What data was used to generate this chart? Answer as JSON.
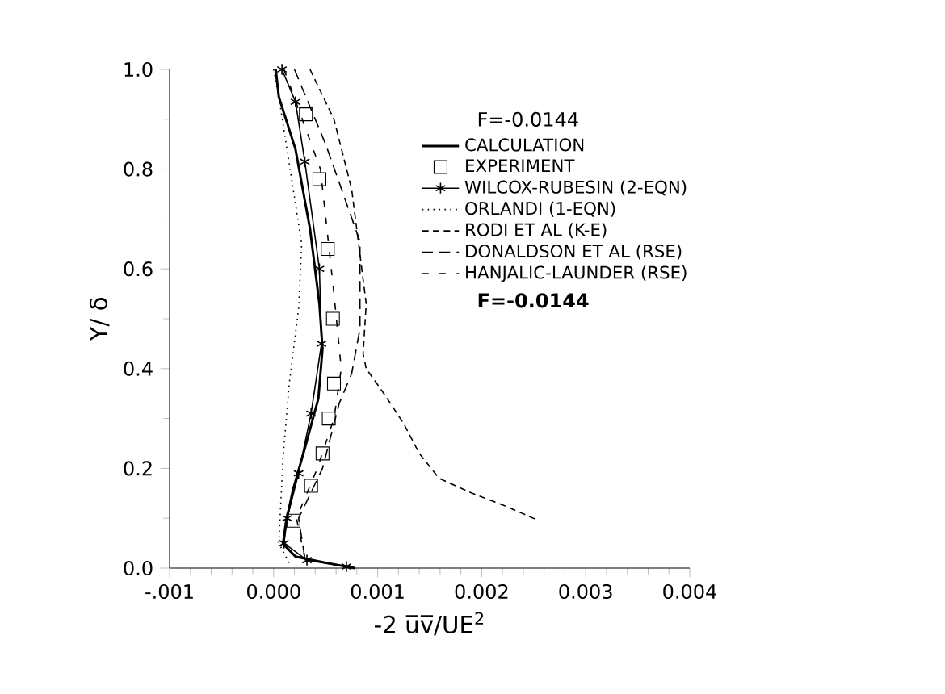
{
  "chart_data": {
    "type": "line",
    "xlabel": "-2 u̅v̅/UE$^{2}$",
    "ylabel": "Y/ δ",
    "xlim": [
      -0.001,
      0.004
    ],
    "ylim": [
      0,
      1.0
    ],
    "xticks": [
      {
        "value": -0.001,
        "label": "-.001"
      },
      {
        "value": 0,
        "label": "0.000"
      },
      {
        "value": 0.001,
        "label": "0.001"
      },
      {
        "value": 0.002,
        "label": "0.002"
      },
      {
        "value": 0.003,
        "label": "0.003"
      },
      {
        "value": 0.004,
        "label": "0.004"
      }
    ],
    "yticks": [
      {
        "value": 0,
        "label": "0.0"
      },
      {
        "value": 0.2,
        "label": "0.2"
      },
      {
        "value": 0.4,
        "label": "0.4"
      },
      {
        "value": 0.6,
        "label": "0.6"
      },
      {
        "value": 0.8,
        "label": "0.8"
      },
      {
        "value": 1.0,
        "label": "1.0"
      }
    ],
    "grid": false,
    "legend": "top right",
    "annotations": [
      "F=-0.0144",
      "F=-0.0144"
    ],
    "series": [
      {
        "name": "CALCULATION",
        "type": "line",
        "color": "#000000",
        "line_style": "solid",
        "marker": "none",
        "x": [
          2e-05,
          5e-05,
          0.00021,
          0.00035,
          0.00044,
          0.00047,
          0.00043,
          0.0003,
          0.00019,
          0.00012,
          9e-05,
          0.00021,
          0.00052,
          0.00078
        ],
        "values": [
          1.0,
          0.945,
          0.84,
          0.68,
          0.53,
          0.44,
          0.34,
          0.24,
          0.16,
          0.094,
          0.049,
          0.023,
          0.01,
          0.0
        ]
      },
      {
        "name": "EXPERIMENT",
        "type": "scatter",
        "color": "#000000",
        "marker": "square",
        "x": [
          0.00031,
          0.00044,
          0.00052,
          0.00057,
          0.00058,
          0.00053,
          0.00047,
          0.00036,
          0.00019
        ],
        "values": [
          0.91,
          0.78,
          0.64,
          0.5,
          0.37,
          0.3,
          0.23,
          0.165,
          0.095
        ]
      },
      {
        "name": "WILCOX-RUBESIN (2-EQN)",
        "type": "line",
        "color": "#000000",
        "line_style": "solid",
        "marker": "cross",
        "x": [
          8e-05,
          0.00021,
          0.0003,
          0.00044,
          0.00046,
          0.00036,
          0.00024,
          0.00013,
          0.0001,
          0.00032,
          0.0007
        ],
        "values": [
          1.0,
          0.935,
          0.815,
          0.6,
          0.45,
          0.31,
          0.19,
          0.1,
          0.05,
          0.016,
          0.003
        ]
      },
      {
        "name": "ORLANDI (1-EQN)",
        "type": "line",
        "color": "#000000",
        "line_style": "dotted",
        "marker": "none",
        "x": [
          0.0,
          5e-05,
          0.00027,
          0.00024,
          0.00015,
          9e-05,
          5e-05,
          0.00016
        ],
        "values": [
          1.0,
          0.945,
          0.65,
          0.52,
          0.37,
          0.22,
          0.05,
          0.006
        ]
      },
      {
        "name": "RODI  ET AL (K-E)",
        "type": "line",
        "color": "#000000",
        "line_style": "dashed",
        "marker": "none",
        "x": [
          0.00035,
          0.00058,
          0.00075,
          0.00089,
          0.00086,
          0.00089,
          0.00106,
          0.00125,
          0.0014,
          0.00159,
          0.00191,
          0.00221,
          0.00253
        ],
        "values": [
          1.0,
          0.9,
          0.76,
          0.53,
          0.43,
          0.4,
          0.35,
          0.29,
          0.23,
          0.18,
          0.15,
          0.126,
          0.097
        ]
      },
      {
        "name": "DONALDSON  ET AL (RSE)",
        "type": "line",
        "color": "#000000",
        "line_style": "dashed",
        "marker": "none",
        "x": [
          0.0002,
          0.0005,
          0.00083,
          0.00083,
          0.00075,
          0.00063,
          0.00047,
          0.00024,
          0.0003
        ],
        "values": [
          1.0,
          0.85,
          0.655,
          0.48,
          0.39,
          0.33,
          0.2,
          0.1,
          0.02
        ]
      },
      {
        "name": "HANJALIC-LAUNDER (RSE)",
        "type": "line",
        "color": "#000000",
        "line_style": "dashed",
        "marker": "none",
        "x": [
          0.0001,
          0.00045,
          0.00058,
          0.00065,
          0.00058,
          0.00042,
          0.00022,
          0.0003
        ],
        "values": [
          1.0,
          0.8,
          0.55,
          0.4,
          0.3,
          0.2,
          0.1,
          0.02
        ]
      }
    ]
  }
}
